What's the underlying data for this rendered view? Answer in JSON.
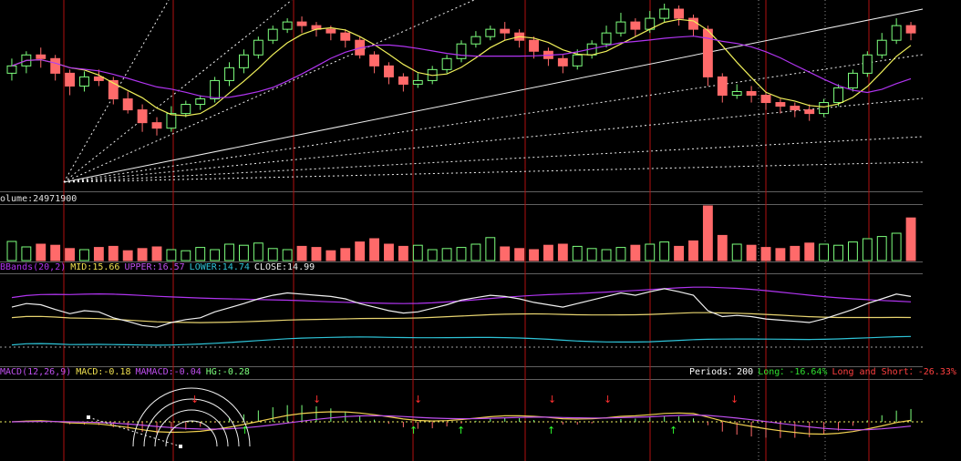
{
  "chart_data": {
    "type": "candlestick",
    "colors": {
      "background": "#000000",
      "up": "#7dff7d",
      "down": "#ff6a6a",
      "ma_short": "#f0f05a",
      "ma_long": "#b034f0",
      "bb_mid": "#e8d470",
      "bb_upper": "#b034f0",
      "bb_lower": "#2ec4d8",
      "close_line": "#f0f0f0",
      "macd": "#f0d050",
      "signal": "#c050f0",
      "trend_line": "#f0f0f0",
      "grid_v": "#b01010"
    },
    "price": {
      "note_range": [
        0,
        1
      ],
      "candles": [
        [
          0.62,
          0.66,
          0.58,
          0.7
        ],
        [
          0.66,
          0.72,
          0.62,
          0.74
        ],
        [
          0.72,
          0.7,
          0.65,
          0.76
        ],
        [
          0.7,
          0.62,
          0.58,
          0.72
        ],
        [
          0.62,
          0.55,
          0.5,
          0.64
        ],
        [
          0.55,
          0.6,
          0.52,
          0.63
        ],
        [
          0.6,
          0.58,
          0.55,
          0.64
        ],
        [
          0.58,
          0.48,
          0.45,
          0.6
        ],
        [
          0.48,
          0.42,
          0.4,
          0.52
        ],
        [
          0.42,
          0.35,
          0.3,
          0.45
        ],
        [
          0.35,
          0.32,
          0.28,
          0.38
        ],
        [
          0.32,
          0.4,
          0.3,
          0.44
        ],
        [
          0.4,
          0.45,
          0.38,
          0.47
        ],
        [
          0.45,
          0.48,
          0.42,
          0.5
        ],
        [
          0.48,
          0.58,
          0.46,
          0.6
        ],
        [
          0.58,
          0.65,
          0.55,
          0.68
        ],
        [
          0.65,
          0.72,
          0.62,
          0.75
        ],
        [
          0.72,
          0.8,
          0.7,
          0.82
        ],
        [
          0.8,
          0.86,
          0.78,
          0.88
        ],
        [
          0.86,
          0.9,
          0.84,
          0.92
        ],
        [
          0.9,
          0.88,
          0.84,
          0.93
        ],
        [
          0.88,
          0.86,
          0.82,
          0.9
        ],
        [
          0.86,
          0.84,
          0.8,
          0.88
        ],
        [
          0.84,
          0.8,
          0.76,
          0.86
        ],
        [
          0.8,
          0.72,
          0.7,
          0.82
        ],
        [
          0.72,
          0.66,
          0.62,
          0.74
        ],
        [
          0.66,
          0.6,
          0.56,
          0.68
        ],
        [
          0.6,
          0.56,
          0.52,
          0.62
        ],
        [
          0.56,
          0.58,
          0.54,
          0.62
        ],
        [
          0.58,
          0.64,
          0.56,
          0.66
        ],
        [
          0.64,
          0.7,
          0.62,
          0.72
        ],
        [
          0.7,
          0.78,
          0.68,
          0.8
        ],
        [
          0.78,
          0.82,
          0.76,
          0.85
        ],
        [
          0.82,
          0.86,
          0.8,
          0.88
        ],
        [
          0.86,
          0.84,
          0.8,
          0.9
        ],
        [
          0.84,
          0.8,
          0.76,
          0.86
        ],
        [
          0.8,
          0.74,
          0.7,
          0.82
        ],
        [
          0.74,
          0.7,
          0.66,
          0.76
        ],
        [
          0.7,
          0.66,
          0.62,
          0.72
        ],
        [
          0.66,
          0.72,
          0.64,
          0.75
        ],
        [
          0.72,
          0.78,
          0.7,
          0.8
        ],
        [
          0.78,
          0.84,
          0.76,
          0.88
        ],
        [
          0.84,
          0.9,
          0.82,
          0.95
        ],
        [
          0.9,
          0.86,
          0.82,
          0.92
        ],
        [
          0.86,
          0.92,
          0.84,
          0.96
        ],
        [
          0.92,
          0.97,
          0.9,
          1.0
        ],
        [
          0.97,
          0.92,
          0.88,
          0.99
        ],
        [
          0.92,
          0.86,
          0.82,
          0.94
        ],
        [
          0.86,
          0.6,
          0.55,
          0.88
        ],
        [
          0.6,
          0.5,
          0.46,
          0.62
        ],
        [
          0.5,
          0.52,
          0.48,
          0.56
        ],
        [
          0.52,
          0.5,
          0.46,
          0.55
        ],
        [
          0.5,
          0.46,
          0.42,
          0.52
        ],
        [
          0.46,
          0.44,
          0.4,
          0.48
        ],
        [
          0.44,
          0.42,
          0.38,
          0.46
        ],
        [
          0.42,
          0.4,
          0.36,
          0.45
        ],
        [
          0.4,
          0.46,
          0.38,
          0.48
        ],
        [
          0.46,
          0.54,
          0.44,
          0.56
        ],
        [
          0.54,
          0.62,
          0.52,
          0.64
        ],
        [
          0.62,
          0.72,
          0.6,
          0.74
        ],
        [
          0.72,
          0.8,
          0.7,
          0.84
        ],
        [
          0.8,
          0.88,
          0.78,
          0.92
        ],
        [
          0.88,
          0.84,
          0.8,
          0.9
        ]
      ]
    },
    "volume": {
      "label": "olume:24971900",
      "values": [
        0.35,
        0.25,
        0.3,
        0.28,
        0.22,
        0.2,
        0.24,
        0.26,
        0.18,
        0.22,
        0.25,
        0.2,
        0.18,
        0.24,
        0.2,
        0.3,
        0.28,
        0.32,
        0.22,
        0.2,
        0.26,
        0.24,
        0.18,
        0.22,
        0.34,
        0.4,
        0.3,
        0.26,
        0.28,
        0.2,
        0.22,
        0.24,
        0.3,
        0.42,
        0.25,
        0.22,
        0.2,
        0.28,
        0.3,
        0.26,
        0.22,
        0.2,
        0.24,
        0.28,
        0.3,
        0.34,
        0.26,
        0.36,
        1.0,
        0.46,
        0.3,
        0.28,
        0.24,
        0.22,
        0.26,
        0.32,
        0.3,
        0.28,
        0.34,
        0.4,
        0.44,
        0.5,
        0.78
      ]
    },
    "bollinger": {
      "label_name": "BBands(20,2)",
      "mid_label": "MID:15.66",
      "upper_label": "UPPER:16.57",
      "lower_label": "LOWER:14.74",
      "close_label": "CLOSE:14.99"
    },
    "macd": {
      "label_name": "MACD(12,26,9)",
      "macd_label": "MACD:-0.18",
      "mamacd_label": "MAMACD:-0.04",
      "hg_label": "HG:-0.28",
      "periods_label": "Periods：200",
      "long_label": "Long：-16.64%",
      "long_short_label": "Long and Short：-26.33%"
    }
  }
}
